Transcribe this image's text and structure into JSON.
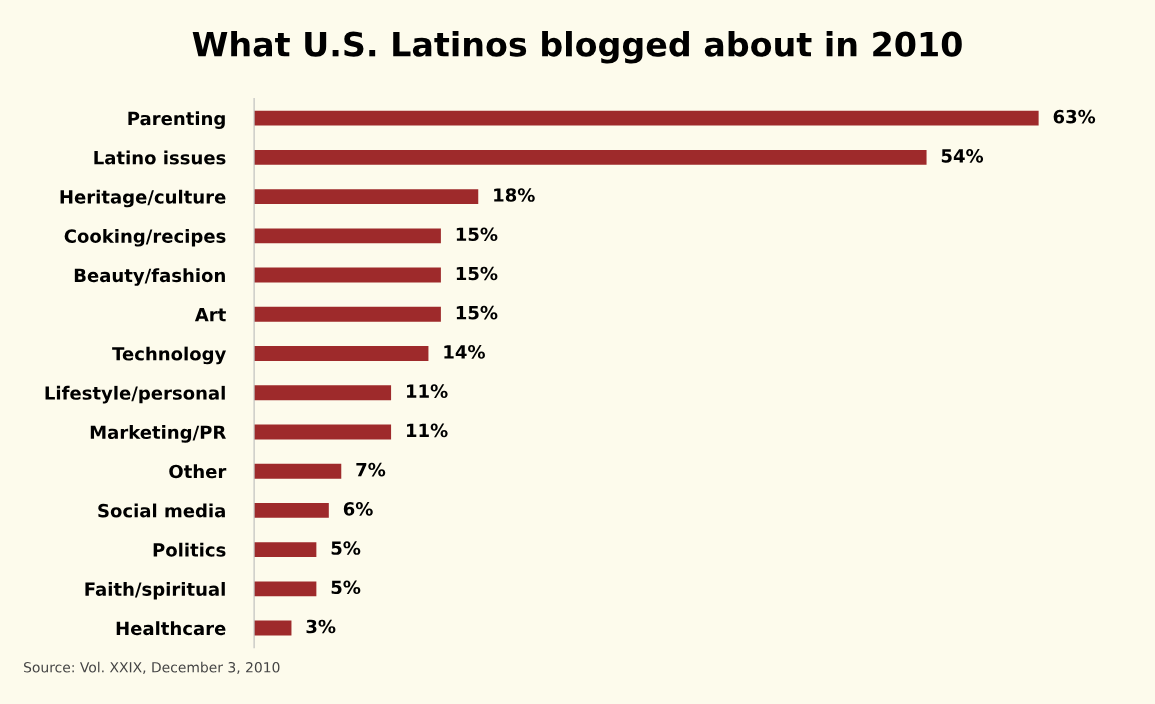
{
  "chart_data": {
    "type": "bar",
    "orientation": "horizontal",
    "title": "What U.S. Latinos blogged about in 2010",
    "categories": [
      "Parenting",
      "Latino issues",
      "Heritage/culture",
      "Cooking/recipes",
      "Beauty/fashion",
      "Art",
      "Technology",
      "Lifestyle/personal",
      "Marketing/PR",
      "Other",
      "Social media",
      "Politics",
      "Faith/spiritual",
      "Healthcare"
    ],
    "values": [
      63,
      54,
      18,
      15,
      15,
      15,
      14,
      11,
      11,
      7,
      6,
      5,
      5,
      3
    ],
    "value_labels": [
      "63%",
      "54%",
      "18%",
      "15%",
      "15%",
      "15%",
      "14%",
      "11%",
      "11%",
      "7%",
      "6%",
      "5%",
      "5%",
      "3%"
    ],
    "color": "#9e2a2b",
    "grid": false,
    "legend": false,
    "tick_labels": "y",
    "annotations": [
      "Source: Vol. XXIX, December 3, 2010"
    ]
  }
}
